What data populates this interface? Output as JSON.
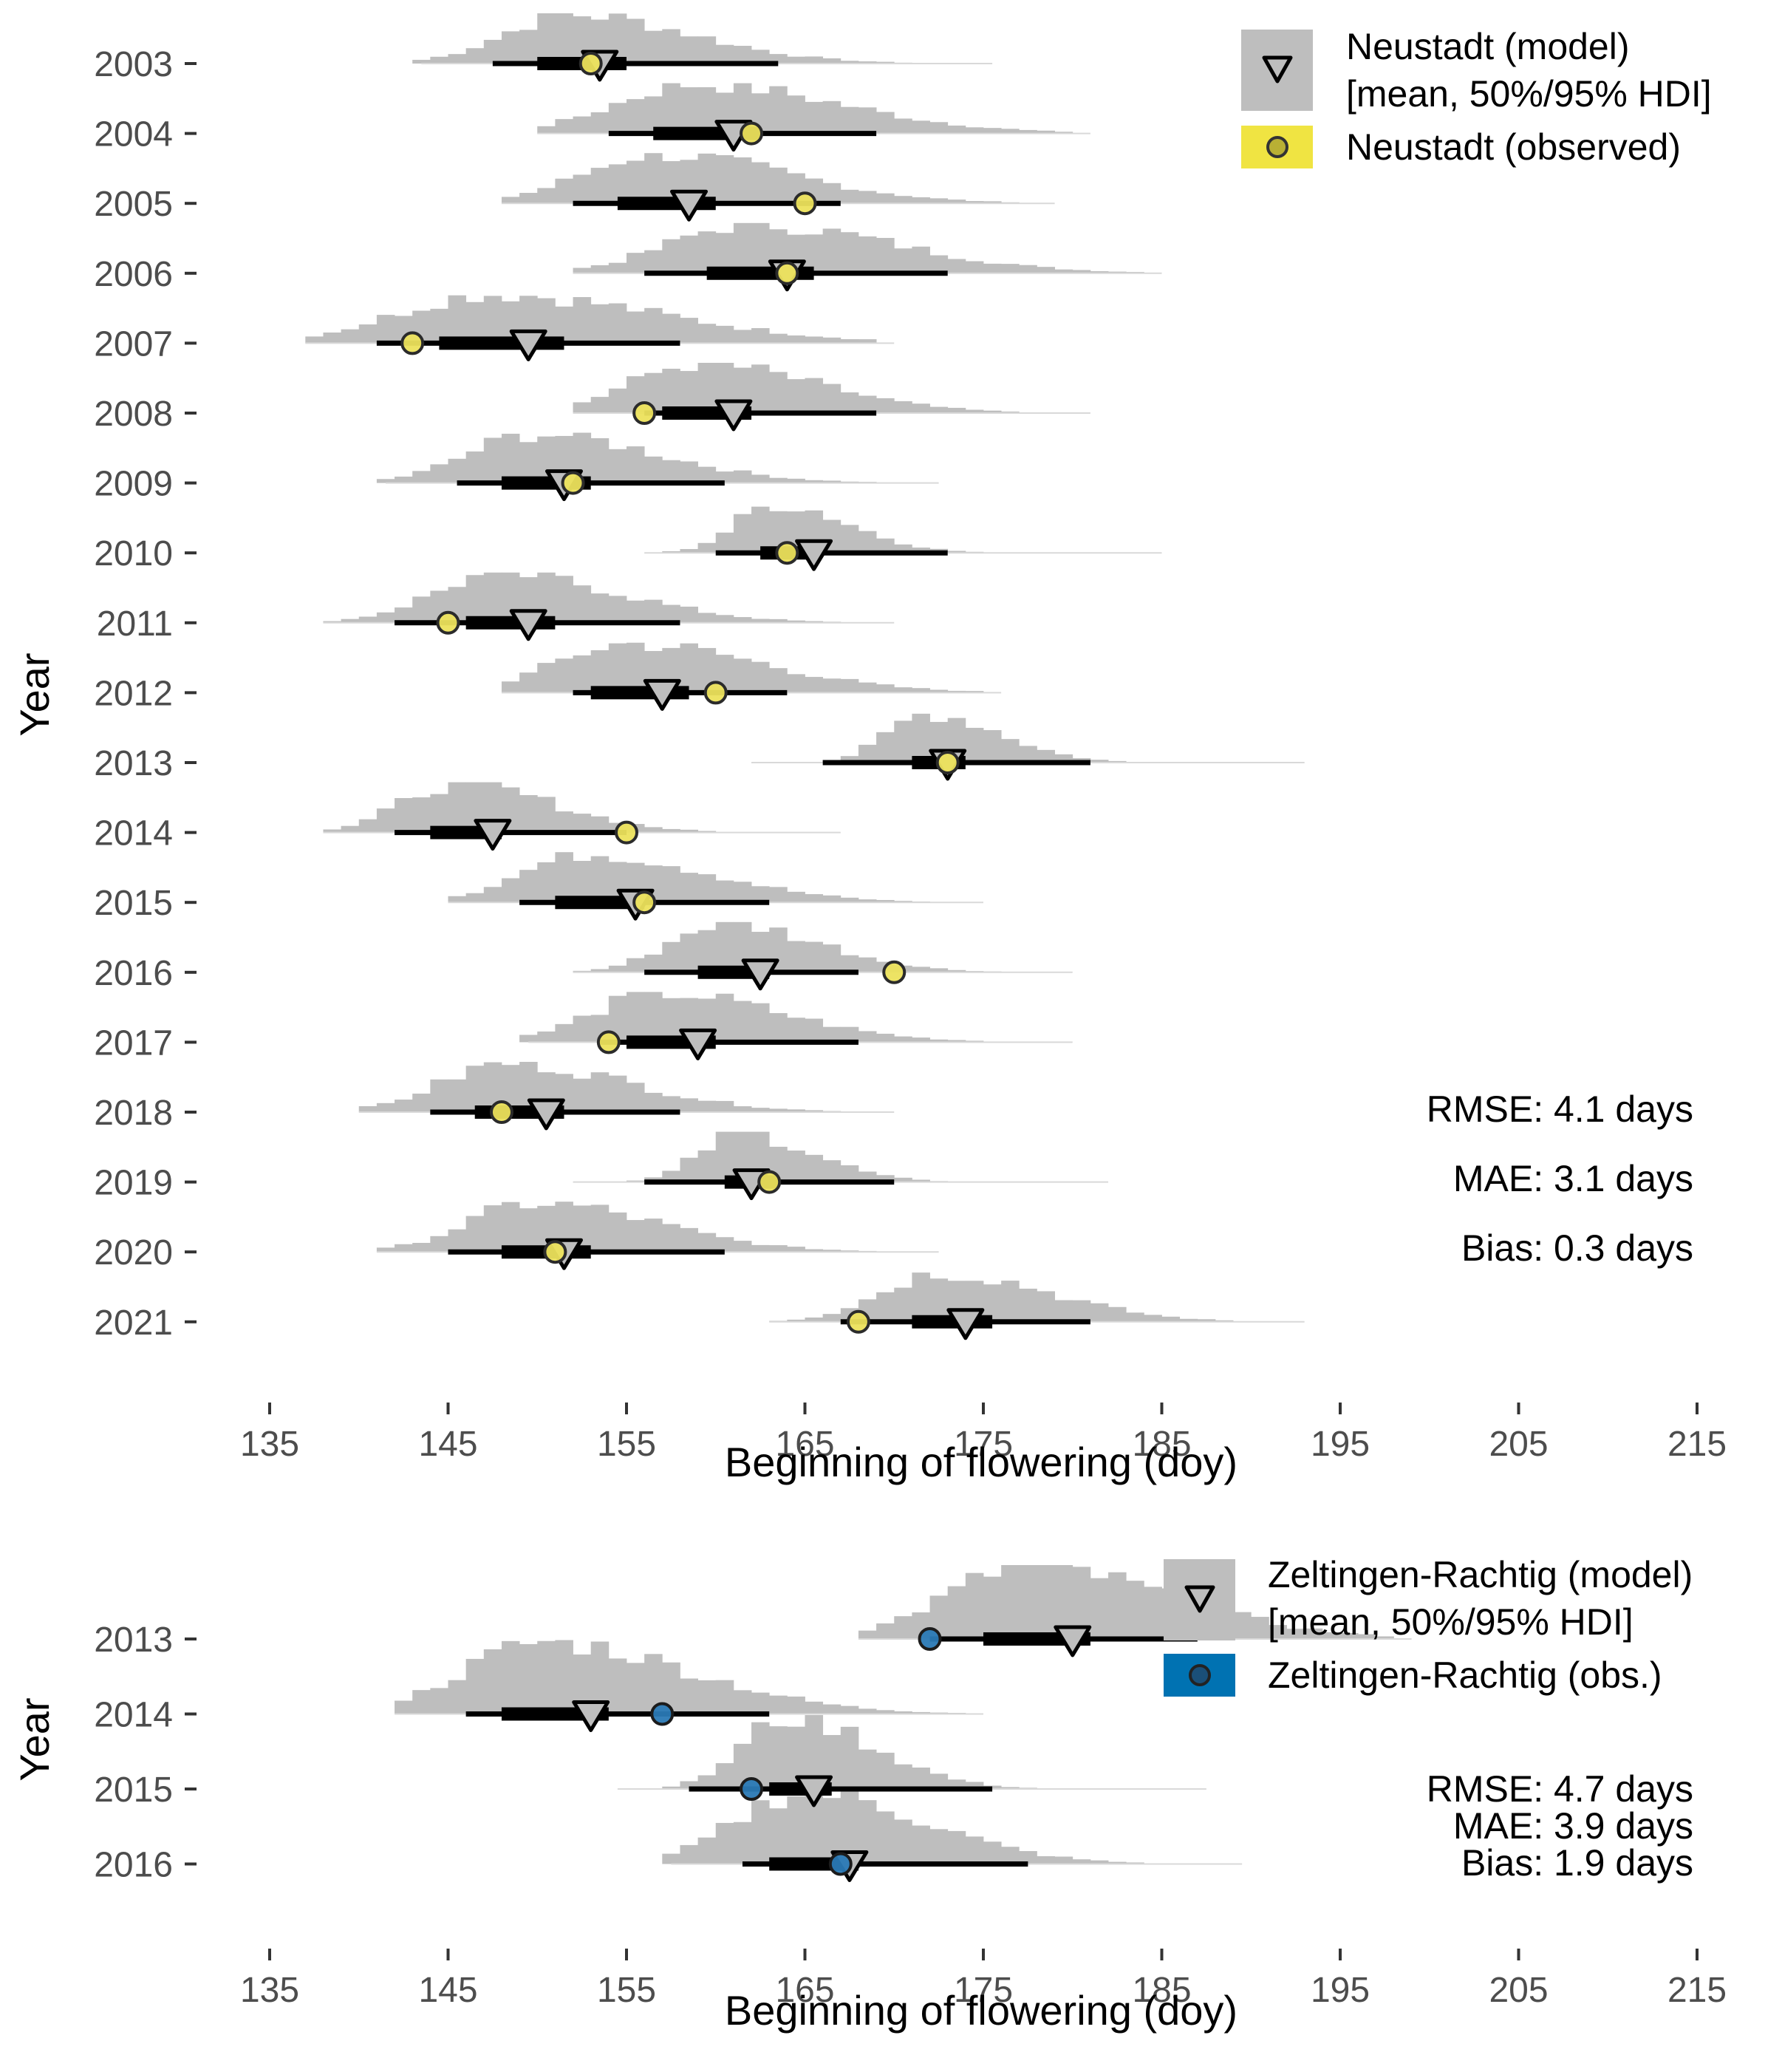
{
  "chart_data": [
    {
      "type": "interval",
      "panel": "Neustadt",
      "xlabel": "Beginning of flowering (doy)",
      "ylabel": "Year",
      "xlim": [
        130,
        218
      ],
      "xticks": [
        135,
        145,
        155,
        165,
        175,
        185,
        195,
        205,
        215
      ],
      "years": [
        "2003",
        "2004",
        "2005",
        "2006",
        "2007",
        "2008",
        "2009",
        "2010",
        "2011",
        "2012",
        "2013",
        "2014",
        "2015",
        "2016",
        "2017",
        "2018",
        "2019",
        "2020",
        "2021"
      ],
      "model_mean": [
        153.5,
        161.0,
        158.5,
        164.0,
        149.5,
        161.0,
        151.5,
        165.5,
        149.5,
        157.0,
        173.0,
        147.5,
        155.5,
        162.5,
        159.0,
        150.5,
        162.0,
        151.5,
        174.0
      ],
      "observed": [
        153.0,
        162.0,
        165.0,
        164.0,
        143.0,
        156.0,
        152.0,
        164.0,
        145.0,
        160.0,
        173.0,
        155.0,
        156.0,
        170.0,
        154.0,
        148.0,
        163.0,
        151.0,
        168.0
      ],
      "hdi50": [
        [
          150.0,
          155.0
        ],
        [
          156.5,
          162.5
        ],
        [
          154.5,
          160.0
        ],
        [
          159.5,
          165.5
        ],
        [
          144.5,
          151.5
        ],
        [
          157.0,
          162.0
        ],
        [
          148.0,
          153.0
        ],
        [
          162.5,
          165.5
        ],
        [
          146.0,
          151.0
        ],
        [
          153.0,
          158.5
        ],
        [
          171.0,
          174.0
        ],
        [
          144.0,
          148.0
        ],
        [
          151.0,
          156.0
        ],
        [
          159.0,
          163.0
        ],
        [
          155.0,
          160.0
        ],
        [
          146.5,
          151.5
        ],
        [
          160.5,
          163.5
        ],
        [
          148.0,
          153.0
        ],
        [
          171.0,
          175.5
        ]
      ],
      "hdi95": [
        [
          147.5,
          163.5
        ],
        [
          154.0,
          169.0
        ],
        [
          152.0,
          167.0
        ],
        [
          156.0,
          173.0
        ],
        [
          141.0,
          158.0
        ],
        [
          156.0,
          169.0
        ],
        [
          145.5,
          160.5
        ],
        [
          160.0,
          173.0
        ],
        [
          142.0,
          158.0
        ],
        [
          152.0,
          164.0
        ],
        [
          166.0,
          181.0
        ],
        [
          142.0,
          155.0
        ],
        [
          149.0,
          163.0
        ],
        [
          156.0,
          168.0
        ],
        [
          153.5,
          168.0
        ],
        [
          144.0,
          158.0
        ],
        [
          156.0,
          170.0
        ],
        [
          145.0,
          160.5
        ],
        [
          167.0,
          181.0
        ]
      ],
      "stats": [
        "RMSE: 4.1 days",
        "MAE: 3.1 days",
        "Bias: 0.3 days"
      ],
      "legend": [
        "Neustadt (model)",
        "[mean, 50%/95% HDI]",
        "Neustadt (observed)"
      ]
    },
    {
      "type": "interval",
      "panel": "Zeltingen-Rachtig",
      "xlabel": "Beginning of flowering (doy)",
      "ylabel": "Year",
      "xlim": [
        130,
        218
      ],
      "xticks": [
        135,
        145,
        155,
        165,
        175,
        185,
        195,
        205,
        215
      ],
      "years": [
        "2013",
        "2014",
        "2015",
        "2016"
      ],
      "model_mean": [
        180.0,
        153.0,
        165.5,
        167.5
      ],
      "observed": [
        172.0,
        157.0,
        162.0,
        167.0
      ],
      "hdi50": [
        [
          175.0,
          181.0
        ],
        [
          148.0,
          154.0
        ],
        [
          163.0,
          166.5
        ],
        [
          163.0,
          168.0
        ]
      ],
      "hdi95": [
        [
          172.0,
          187.0
        ],
        [
          146.0,
          163.0
        ],
        [
          158.5,
          175.5
        ],
        [
          161.5,
          177.5
        ]
      ],
      "stats": [
        "RMSE: 4.7 days",
        "MAE: 3.9 days",
        "Bias: 1.9 days"
      ],
      "legend": [
        "Zeltingen-Rachtig (model)",
        "[mean, 50%/95% HDI]",
        "Zeltingen-Rachtig (obs.)"
      ]
    }
  ],
  "colors": {
    "neustadt_observed": "#f0e442",
    "zeltingen_observed": "#0072b2",
    "posterior": "#bebebe",
    "interval": "#000000",
    "axis_text": "#4d4d4d"
  }
}
